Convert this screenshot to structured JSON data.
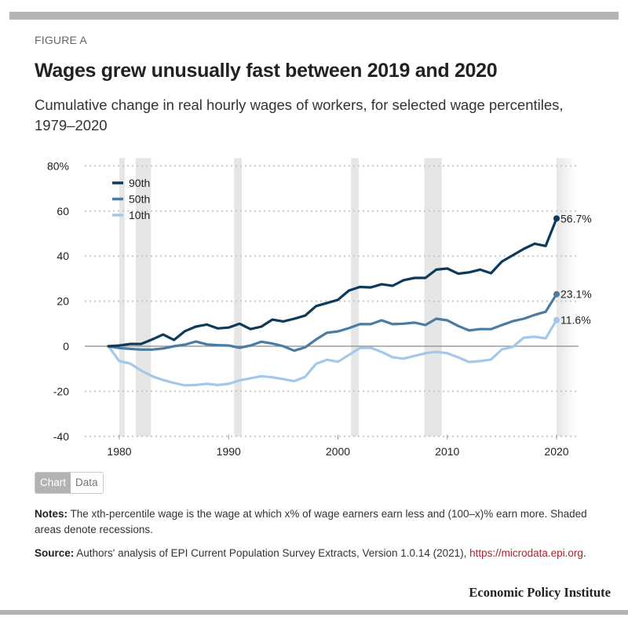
{
  "figure_label": "FIGURE A",
  "title": "Wages grew unusually fast between 2019 and 2020",
  "subtitle": "Cumulative change in real hourly wages of workers, for selected wage percentiles, 1979–2020",
  "toggle": {
    "chart_label": "Chart",
    "data_label": "Data",
    "active": "Chart"
  },
  "notes": {
    "label": "Notes:",
    "text": " The xth-percentile wage is the wage at which x% of wage earners earn less and (100–x)% earn more. Shaded areas denote recessions."
  },
  "source": {
    "label": "Source:",
    "text": " Authors' analysis of EPI Current Population Survey Extracts, Version 1.0.14 (2021), ",
    "link_text": "https://microdata.epi.org",
    "trailing": "."
  },
  "brand": "Economic Policy Institute",
  "colors": {
    "p90": "#0d3a5a",
    "p50": "#4a7ba3",
    "p10": "#a3c8e9",
    "recession": "#e6e6e6",
    "grid": "#c8c8c8",
    "zero": "#8a8a8a",
    "link": "#a3272f"
  },
  "chart_data": {
    "type": "line",
    "title": "Wages grew unusually fast between 2019 and 2020",
    "xlabel": "",
    "ylabel": "",
    "x": [
      1979,
      1980,
      1981,
      1982,
      1983,
      1984,
      1985,
      1986,
      1987,
      1988,
      1989,
      1990,
      1991,
      1992,
      1993,
      1994,
      1995,
      1996,
      1997,
      1998,
      1999,
      2000,
      2001,
      2002,
      2003,
      2004,
      2005,
      2006,
      2007,
      2008,
      2009,
      2010,
      2011,
      2012,
      2013,
      2014,
      2015,
      2016,
      2017,
      2018,
      2019,
      2020
    ],
    "xlim": [
      1977.5,
      2022
    ],
    "ylim": [
      -40,
      80
    ],
    "xticks": [
      1980,
      1990,
      2000,
      2010,
      2020
    ],
    "xtick_labels": [
      "1980",
      "1990",
      "2000",
      "2010",
      "2020"
    ],
    "yticks": [
      -40,
      -20,
      0,
      20,
      40,
      60,
      80
    ],
    "ytick_labels": [
      "-40",
      "-20",
      "0",
      "20",
      "40",
      "60",
      "80%"
    ],
    "grid": true,
    "legend_position": "top-left",
    "recessions": [
      [
        1980.0,
        1980.5
      ],
      [
        1981.5,
        1982.9
      ],
      [
        1990.5,
        1991.2
      ],
      [
        2001.2,
        2001.9
      ],
      [
        2007.9,
        2009.5
      ],
      [
        2020.0,
        2021.8
      ]
    ],
    "series": [
      {
        "name": "90th",
        "key": "p90",
        "end_label": "56.7%",
        "values": [
          0,
          0.3,
          1.0,
          1.0,
          3.0,
          5.2,
          2.8,
          6.7,
          8.7,
          9.6,
          7.9,
          8.3,
          10.0,
          7.6,
          8.7,
          11.8,
          11.0,
          12.2,
          13.6,
          17.8,
          19.2,
          20.6,
          24.7,
          26.3,
          26.1,
          27.5,
          26.8,
          29.3,
          30.3,
          30.3,
          34.0,
          34.5,
          32.2,
          32.8,
          34.0,
          32.4,
          37.6,
          40.4,
          43.2,
          45.5,
          44.5,
          56.7
        ]
      },
      {
        "name": "50th",
        "key": "p50",
        "end_label": "23.1%",
        "values": [
          0,
          -0.8,
          -1.2,
          -1.5,
          -1.5,
          -1.0,
          0,
          0.7,
          2.1,
          0.8,
          0.5,
          0.3,
          -0.7,
          0.3,
          2.0,
          1.2,
          0,
          -2.0,
          -0.5,
          3.0,
          6.0,
          6.6,
          8.0,
          9.8,
          9.8,
          11.5,
          9.8,
          10.0,
          10.5,
          9.4,
          12.2,
          11.5,
          9.0,
          7.0,
          7.6,
          7.6,
          9.4,
          11.1,
          12.2,
          13.9,
          15.3,
          23.1
        ]
      },
      {
        "name": "10th",
        "key": "p10",
        "end_label": "11.6%",
        "values": [
          0,
          -6.6,
          -7.7,
          -10.8,
          -13.3,
          -15.0,
          -16.3,
          -17.4,
          -17.2,
          -16.7,
          -17.2,
          -16.7,
          -15.2,
          -14.2,
          -13.3,
          -13.8,
          -14.6,
          -15.5,
          -13.6,
          -7.8,
          -6.0,
          -6.9,
          -3.9,
          -0.8,
          -0.7,
          -2.5,
          -4.9,
          -5.5,
          -4.3,
          -3.1,
          -2.5,
          -3.1,
          -4.9,
          -7.0,
          -6.6,
          -5.9,
          -1.4,
          -0.3,
          3.8,
          4.2,
          3.5,
          11.6
        ]
      }
    ]
  }
}
